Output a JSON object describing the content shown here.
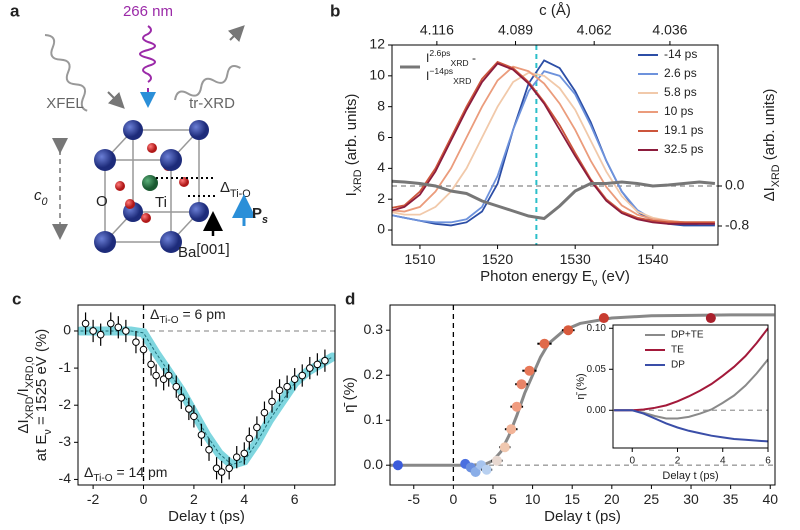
{
  "diagram": {
    "label": "a",
    "wavelength": "266 nm",
    "source": "XFEL",
    "probe": "tr-XRD",
    "lattice": [
      "c",
      {
        "sub": "0"
      }
    ],
    "oxygen": "O",
    "titanium": "Ti",
    "barium": "Ba",
    "displacement": [
      "Δ",
      {
        "sub": "Ti-O"
      }
    ],
    "polarization": [
      "P",
      {
        "sub": "s"
      }
    ],
    "direction": "[001]"
  },
  "chart_data": [
    {
      "type": "line",
      "panel_label": "b",
      "xlabel": [
        "Photon energy E",
        {
          "sub": "ν"
        },
        " (eV)"
      ],
      "ylabel": [
        "I",
        {
          "sub": "XRD"
        },
        " (arb. units)"
      ],
      "y2label": [
        "ΔI",
        {
          "sub": "XRD"
        },
        " (arb. units)"
      ],
      "x2label": "c (Å)",
      "xlim": [
        1506.4,
        1548.4
      ],
      "xticks": [
        1510,
        1520,
        1530,
        1540
      ],
      "x2lim": [
        4.1314,
        4.0195
      ],
      "x2ticks": [
        4.116,
        4.089,
        4.062,
        4.036
      ],
      "ylim": [
        -0.97,
        12
      ],
      "yticks": [
        0,
        2,
        4,
        6,
        8,
        10,
        12
      ],
      "y2lim": [
        -1.18,
        2.82
      ],
      "y2ticks": [
        {
          "value": 0,
          "label": "0.0"
        },
        -0.8
      ],
      "reference_lines": [
        {
          "axis": "x",
          "value": 1525,
          "color": "#2bbfc9"
        },
        {
          "axis": "y2",
          "value": 0,
          "color": "#888888"
        }
      ],
      "legend": "upper right",
      "x": [
        1506,
        1508,
        1510,
        1512,
        1514,
        1516,
        1518,
        1520,
        1522,
        1524,
        1526,
        1528,
        1530,
        1532,
        1534,
        1536,
        1538,
        1540,
        1542,
        1544,
        1546,
        1548
      ],
      "series": [
        {
          "name": "-14 ps",
          "color": "#2c4ea6",
          "values": [
            1.0,
            0.8,
            0.6,
            0.4,
            0.3,
            0.5,
            1.2,
            3.0,
            6.5,
            9.5,
            11.0,
            10.5,
            9.0,
            7.0,
            4.5,
            2.5,
            1.2,
            0.6,
            0.4,
            0.3,
            0.3,
            0.3
          ]
        },
        {
          "name": "2.6 ps",
          "color": "#6d92dc",
          "values": [
            1.0,
            0.8,
            0.6,
            0.5,
            0.5,
            0.7,
            1.5,
            3.5,
            6.5,
            9.0,
            10.3,
            10.0,
            8.8,
            6.8,
            4.5,
            2.5,
            1.3,
            0.7,
            0.5,
            0.5,
            0.4,
            0.4
          ]
        },
        {
          "name": "5.8 ps",
          "color": "#f1c9aa",
          "values": [
            1.2,
            1.0,
            1.0,
            1.5,
            2.5,
            4.0,
            6.0,
            8.0,
            9.6,
            10.2,
            10.0,
            9.2,
            7.8,
            5.8,
            3.8,
            2.2,
            1.2,
            0.8,
            0.6,
            0.5,
            0.5,
            0.5
          ]
        },
        {
          "name": "10 ps",
          "color": "#eb9c7c",
          "values": [
            1.3,
            1.2,
            1.5,
            2.5,
            4.0,
            6.0,
            8.0,
            9.7,
            10.6,
            10.3,
            9.5,
            8.2,
            6.5,
            4.5,
            2.8,
            1.6,
            1.0,
            0.7,
            0.6,
            0.5,
            0.5,
            0.5
          ]
        },
        {
          "name": "19.1 ps",
          "color": "#cc553c",
          "values": [
            1.4,
            1.6,
            2.5,
            4.0,
            6.0,
            8.0,
            9.8,
            10.9,
            10.5,
            9.6,
            8.3,
            6.8,
            5.0,
            3.3,
            2.0,
            1.2,
            0.8,
            0.6,
            0.5,
            0.5,
            0.5,
            0.5
          ]
        },
        {
          "name": "32.5 ps",
          "color": "#8c1c3c",
          "values": [
            1.2,
            1.5,
            2.3,
            3.8,
            5.8,
            7.8,
            9.6,
            10.8,
            10.4,
            9.5,
            8.2,
            6.5,
            4.8,
            3.2,
            1.9,
            1.1,
            0.7,
            0.5,
            0.4,
            0.4,
            0.4,
            0.4
          ]
        },
        {
          "name": [
            [
              "I",
              {
                "sup": "2.6ps"
              },
              {
                "sub": "XRD"
              },
              " -"
            ],
            [
              "I",
              {
                "sup": "−14ps"
              },
              {
                "sub": "XRD"
              }
            ]
          ],
          "color": "#777777",
          "axis": "y2",
          "values": [
            0.1,
            0.08,
            0.05,
            0.0,
            -0.1,
            -0.15,
            -0.3,
            -0.4,
            -0.5,
            -0.6,
            -0.65,
            -0.4,
            -0.1,
            0.05,
            0.05,
            0.08,
            0.05,
            0.0,
            0.02,
            0.05,
            0.08,
            0.05
          ]
        }
      ]
    },
    {
      "type": "errorbar",
      "panel_label": "c",
      "xlabel": "Delay t (ps)",
      "ylabel": [
        [
          "ΔI",
          {
            "sub": "XRD"
          },
          "/I",
          {
            "sub": "XRD,0"
          }
        ],
        [
          "at E",
          {
            "sub": "ν"
          },
          " = 1525 eV (%)"
        ]
      ],
      "xlim": [
        -2.6,
        7.6
      ],
      "xticks": [
        -2,
        0,
        2,
        4,
        6
      ],
      "ylim": [
        -4.15,
        0.7
      ],
      "yticks": [
        0,
        -1,
        -2,
        -3,
        -4
      ],
      "reference_lines": [
        {
          "axis": "x",
          "value": 0,
          "color": "#000000"
        },
        {
          "axis": "y",
          "value": 0,
          "color": "#999999"
        }
      ],
      "annotations": [
        [
          "Δ",
          {
            "sub": "Ti-O"
          },
          " = 6 pm"
        ],
        [
          "Δ",
          {
            "sub": "Ti-O"
          },
          " = 14 pm"
        ]
      ],
      "x": [
        -2.3,
        -2.0,
        -1.7,
        -1.3,
        -1.0,
        -0.7,
        -0.3,
        0.0,
        0.3,
        0.5,
        0.8,
        1.0,
        1.3,
        1.5,
        1.8,
        2.0,
        2.3,
        2.6,
        2.9,
        3.1,
        3.4,
        3.7,
        4.0,
        4.2,
        4.5,
        4.8,
        5.1,
        5.4,
        5.7,
        6.0,
        6.3,
        6.6,
        6.9,
        7.2
      ],
      "values": [
        0.2,
        0.0,
        -0.1,
        0.2,
        0.1,
        0.0,
        -0.3,
        -0.5,
        -0.9,
        -1.2,
        -1.3,
        -1.2,
        -1.5,
        -1.8,
        -2.1,
        -2.3,
        -2.8,
        -3.2,
        -3.7,
        -3.8,
        -3.7,
        -3.4,
        -3.3,
        -2.9,
        -2.6,
        -2.2,
        -1.9,
        -1.6,
        -1.5,
        -1.3,
        -1.2,
        -1.0,
        -0.9,
        -0.8
      ],
      "errors": [
        0.3,
        0.3,
        0.3,
        0.3,
        0.3,
        0.3,
        0.3,
        0.3,
        0.3,
        0.3,
        0.3,
        0.3,
        0.3,
        0.3,
        0.3,
        0.3,
        0.3,
        0.3,
        0.3,
        0.3,
        0.3,
        0.3,
        0.3,
        0.3,
        0.3,
        0.3,
        0.3,
        0.3,
        0.3,
        0.3,
        0.3,
        0.3,
        0.3,
        0.3
      ],
      "fit": {
        "color": "#7fd6df",
        "x": [
          -2.5,
          -2,
          -1.5,
          -1,
          -0.5,
          0,
          0.5,
          1,
          1.5,
          2,
          2.5,
          3,
          3.5,
          4,
          4.5,
          5,
          5.5,
          6,
          6.5,
          7,
          7.5
        ],
        "values": [
          0,
          0,
          0,
          0,
          0,
          -0.05,
          -0.6,
          -1.1,
          -1.6,
          -2.2,
          -2.8,
          -3.3,
          -3.6,
          -3.5,
          -3.0,
          -2.4,
          -1.9,
          -1.4,
          -1.1,
          -0.9,
          -0.7
        ]
      }
    },
    {
      "type": "scatter",
      "panel_label": "d",
      "xlabel": "Delay t (ps)",
      "ylabel": "η̄ (%)",
      "xlim": [
        -8,
        40.6
      ],
      "xticks": [
        -5,
        0,
        5,
        10,
        15,
        20,
        25,
        30,
        35,
        40
      ],
      "ylim": [
        -0.044,
        0.356
      ],
      "yticks": [
        {
          "value": 0,
          "label": "0.0"
        },
        {
          "value": 0.1,
          "label": "0.1"
        },
        {
          "value": 0.2,
          "label": "0.2"
        },
        {
          "value": 0.3,
          "label": "0.3"
        }
      ],
      "reference_lines": [
        {
          "axis": "x",
          "value": 0,
          "color": "#000000"
        },
        {
          "axis": "y",
          "value": 0,
          "color": "#999999"
        }
      ],
      "x": [
        -7,
        1.5,
        2.2,
        2.8,
        3.5,
        4.2,
        5.5,
        6.5,
        7.3,
        8.0,
        8.6,
        9.6,
        11.5,
        14.5,
        19,
        32.5
      ],
      "values": [
        0,
        0.003,
        -0.005,
        -0.015,
        0.0,
        -0.01,
        0.01,
        0.04,
        0.08,
        0.13,
        0.18,
        0.21,
        0.27,
        0.3,
        0.327,
        0.327
      ],
      "xerr": [
        0.3,
        0.5,
        0.5,
        0.6,
        0.6,
        0.7,
        0.7,
        0.7,
        0.8,
        0.8,
        0.8,
        0.9,
        0.9,
        0.8,
        0.6,
        0.6
      ],
      "colors": [
        "#3b5bdb",
        "#4a6fe0",
        "#6a8fe0",
        "#8aaee8",
        "#a7c4ee",
        "#b8d0f0",
        "#e8d8d0",
        "#f0c8b0",
        "#f2b498",
        "#f09c80",
        "#e88468",
        "#e87858",
        "#e06a4a",
        "#d85a3c",
        "#c83c30",
        "#a8202c"
      ],
      "fit": {
        "color": "#888888",
        "x": [
          -8,
          0,
          2,
          4,
          5,
          6,
          7,
          8,
          9,
          10,
          11,
          12,
          14,
          16,
          20,
          25,
          30,
          35,
          40.5
        ],
        "values": [
          0,
          0,
          0,
          0.002,
          0.01,
          0.03,
          0.065,
          0.11,
          0.16,
          0.2,
          0.24,
          0.27,
          0.3,
          0.315,
          0.327,
          0.332,
          0.333,
          0.334,
          0.334
        ]
      }
    },
    {
      "type": "line",
      "panel_label": null,
      "xlabel": "Delay t (ps)",
      "ylabel": "η̄ (%)",
      "xlim": [
        -0.85,
        6
      ],
      "xticks": [
        0,
        2,
        4,
        6
      ],
      "ylim": [
        -0.046,
        0.104
      ],
      "yticks": [
        {
          "value": 0,
          "label": "0.00"
        },
        {
          "value": 0.05,
          "label": "0.05"
        },
        {
          "value": 0.1,
          "label": "0.10"
        }
      ],
      "reference_lines": [
        {
          "axis": "y",
          "value": 0,
          "color": "#999999"
        }
      ],
      "legend": "upper left",
      "x": [
        -0.8,
        0,
        0.5,
        1,
        1.5,
        2,
        2.5,
        3,
        3.5,
        4,
        4.5,
        5,
        5.5,
        6
      ],
      "series": [
        {
          "name": "DP+TE",
          "color": "#8a8a8a",
          "values": [
            0,
            0,
            -0.003,
            -0.007,
            -0.01,
            -0.01,
            -0.008,
            -0.004,
            0.001,
            0.009,
            0.018,
            0.03,
            0.045,
            0.062
          ]
        },
        {
          "name": "TE",
          "color": "#a3193a",
          "values": [
            0,
            0,
            0.001,
            0.003,
            0.006,
            0.011,
            0.017,
            0.024,
            0.032,
            0.042,
            0.053,
            0.066,
            0.082,
            0.1
          ]
        },
        {
          "name": "DP",
          "color": "#3a4ea8",
          "values": [
            0,
            0,
            -0.004,
            -0.01,
            -0.016,
            -0.021,
            -0.025,
            -0.028,
            -0.031,
            -0.033,
            -0.035,
            -0.036,
            -0.037,
            -0.038
          ]
        }
      ]
    }
  ]
}
